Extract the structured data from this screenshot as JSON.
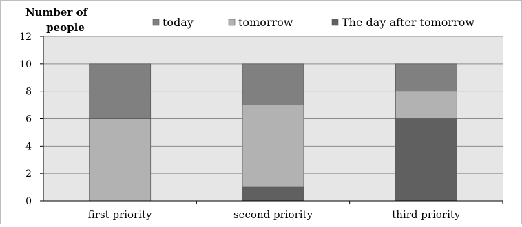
{
  "chart_data": {
    "type": "bar",
    "stacked": true,
    "title": "",
    "xlabel": "",
    "ylabel": "Number of people",
    "ylabel_lines": [
      "Number of",
      "people"
    ],
    "categories": [
      "first priority",
      "second priority",
      "third priority"
    ],
    "series": [
      {
        "name": "The day after tomorrow",
        "values": [
          0,
          1,
          6
        ],
        "color": "#606060"
      },
      {
        "name": "tomorrow",
        "values": [
          6,
          6,
          2
        ],
        "color": "#b2b2b2"
      },
      {
        "name": "today",
        "values": [
          4,
          3,
          2
        ],
        "color": "#808080"
      }
    ],
    "legend_order": [
      "today",
      "tomorrow",
      "The day after tomorrow"
    ],
    "legend_position": "top",
    "ylim": [
      0,
      12
    ],
    "yticks": [
      0,
      2,
      4,
      6,
      8,
      10,
      12
    ],
    "grid": true,
    "plot_background": "#e6e6e6"
  }
}
